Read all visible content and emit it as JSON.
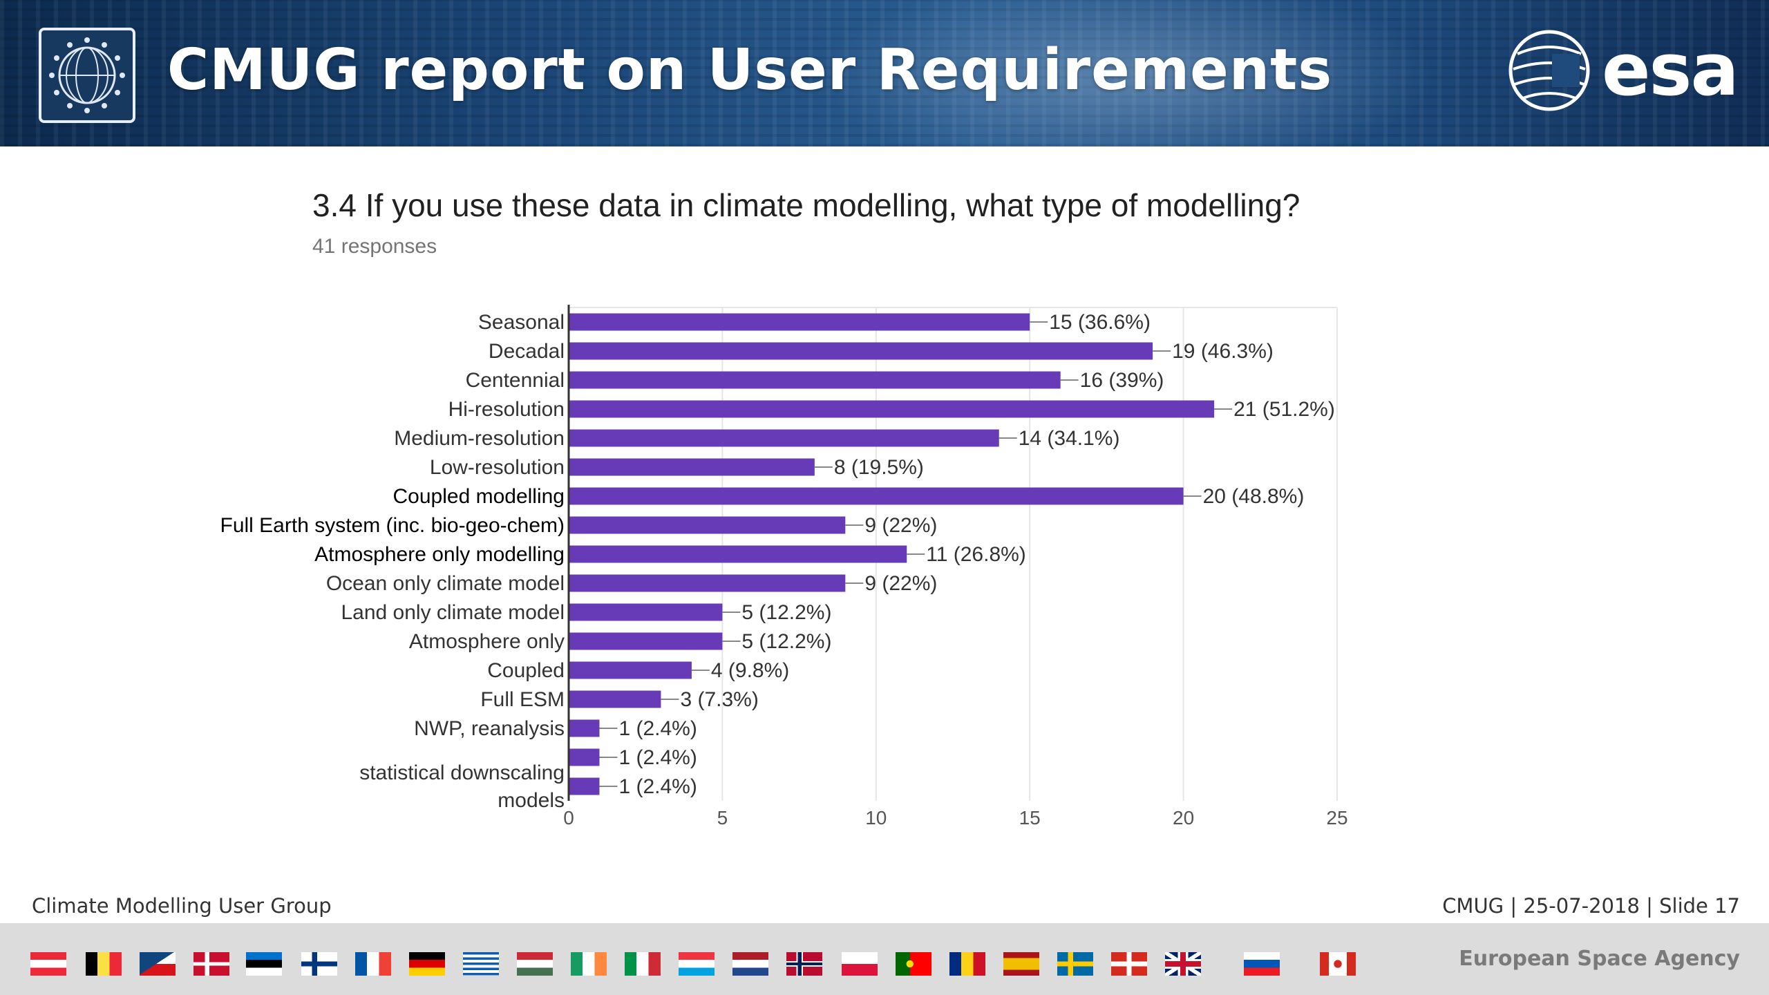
{
  "header": {
    "title": "CMUG report on User Requirements",
    "brand": "esa"
  },
  "question": {
    "title": "3.4 If you use these data in climate modelling, what type of modelling?",
    "responses": "41 responses"
  },
  "chart_data": {
    "type": "bar",
    "orientation": "horizontal",
    "categories": [
      "Seasonal",
      "Decadal",
      "Centennial",
      "Hi-resolution",
      "Medium-resolution",
      "Low-resolution",
      "Coupled modelling",
      "Full Earth system (inc. bio-geo-chem)",
      "Atmosphere only modelling",
      "Ocean only climate model",
      "Land only climate model",
      "Atmosphere only",
      "Coupled",
      "Full ESM",
      "NWP, reanalysis",
      "",
      ""
    ],
    "values": [
      15,
      19,
      16,
      21,
      14,
      8,
      20,
      9,
      11,
      9,
      5,
      5,
      4,
      3,
      1,
      1,
      1
    ],
    "value_labels": [
      "15 (36.6%)",
      "19 (46.3%)",
      "16 (39%)",
      "21 (51.2%)",
      "14 (34.1%)",
      "8 (19.5%)",
      "20 (48.8%)",
      "9 (22%)",
      "11 (26.8%)",
      "9 (22%)",
      "5 (12.2%)",
      "5 (12.2%)",
      "4 (9.8%)",
      "3 (7.3%)",
      "1 (2.4%)",
      "1 (2.4%)",
      "1 (2.4%)"
    ],
    "extra_label": "statistical downscaling models",
    "xlim": [
      0,
      25
    ],
    "xticks": [
      0,
      5,
      10,
      15,
      20,
      25
    ],
    "grid": true,
    "bar_color": "#673ab7"
  },
  "footer": {
    "left": "Climate Modelling User Group",
    "right": "CMUG | 25-07-2018 | Slide  17",
    "agency": "European Space Agency"
  },
  "flags": [
    "austria-flag-icon",
    "belgium-flag-icon",
    "czech-flag-icon",
    "denmark-flag-icon",
    "estonia-flag-icon",
    "finland-flag-icon",
    "france-flag-icon",
    "germany-flag-icon",
    "greece-flag-icon",
    "hungary-flag-icon",
    "ireland-flag-icon",
    "italy-flag-icon",
    "luxembourg-flag-icon",
    "netherlands-flag-icon",
    "norway-flag-icon",
    "poland-flag-icon",
    "portugal-flag-icon",
    "romania-flag-icon",
    "spain-flag-icon",
    "sweden-flag-icon",
    "switzerland-flag-icon",
    "uk-flag-icon",
    "slovenia-flag-icon",
    "canada-flag-icon"
  ]
}
